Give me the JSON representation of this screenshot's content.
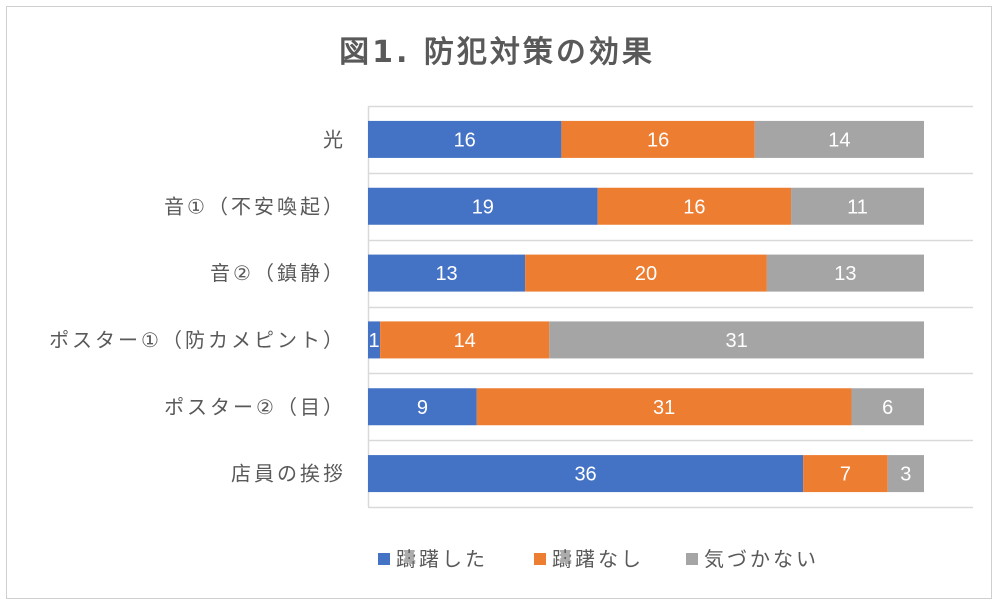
{
  "chart_data": {
    "type": "bar",
    "orientation": "horizontal",
    "stacked": true,
    "title": "図1. 防犯対策の効果",
    "categories": [
      "光",
      "音①（不安喚起）",
      "音②（鎮静）",
      "ポスター①（防カメピント）",
      "ポスター②（目）",
      "店員の挨拶"
    ],
    "series": [
      {
        "name": "躊躇した",
        "color": "#4472C4",
        "values": [
          16,
          19,
          13,
          1,
          9,
          36
        ]
      },
      {
        "name": "躊躇なし",
        "color": "#ED7D31",
        "values": [
          16,
          16,
          20,
          14,
          31,
          7
        ]
      },
      {
        "name": "気づかない",
        "color": "#A5A5A5",
        "values": [
          14,
          11,
          13,
          31,
          6,
          3
        ]
      }
    ],
    "xlim": [
      0,
      50
    ],
    "grid": true,
    "legend_position": "bottom",
    "xlabel": "",
    "ylabel": ""
  }
}
